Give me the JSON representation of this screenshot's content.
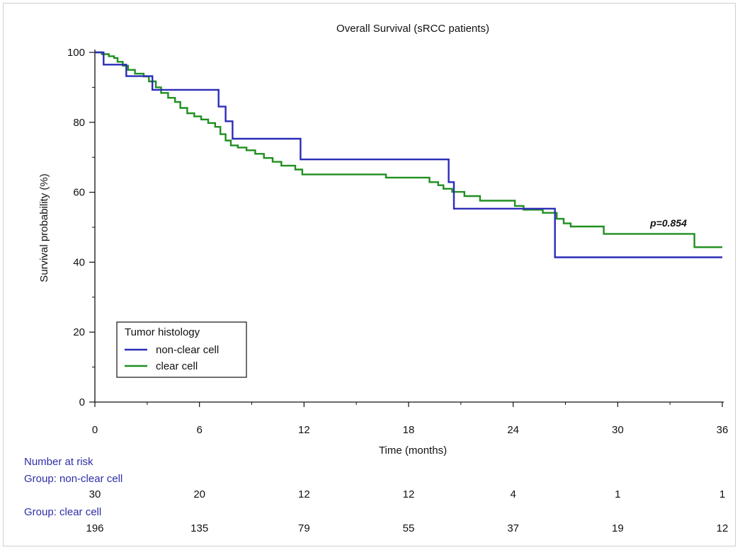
{
  "chart_data": {
    "type": "line",
    "title": "Overall Survival (sRCC patients)",
    "xlabel": "Time (months)",
    "ylabel": "Survival probability (%)",
    "xlim": [
      0,
      36
    ],
    "ylim": [
      0,
      100
    ],
    "x_ticks": [
      "0",
      "6",
      "12",
      "18",
      "24",
      "30",
      "36"
    ],
    "y_ticks": [
      "0",
      "20",
      "40",
      "60",
      "80",
      "100"
    ],
    "legend": {
      "title": "Tumor histology",
      "position": "lower-left"
    },
    "annotation": "p=0.854",
    "series": [
      {
        "name": "non-clear cell",
        "color": "#2b2bb8",
        "step_points": [
          [
            0,
            100
          ],
          [
            0.5,
            96.5
          ],
          [
            1.8,
            93.2
          ],
          [
            3.3,
            89.3
          ],
          [
            7.1,
            84.5
          ],
          [
            7.5,
            80.3
          ],
          [
            7.9,
            75.3
          ],
          [
            11.8,
            69.4
          ],
          [
            20.3,
            62.9
          ],
          [
            20.6,
            55.3
          ],
          [
            26.4,
            41.4
          ],
          [
            36,
            41.4
          ]
        ]
      },
      {
        "name": "clear cell",
        "color": "#1f8f1f",
        "step_points": [
          [
            0,
            100
          ],
          [
            0.4,
            99.5
          ],
          [
            0.8,
            98.9
          ],
          [
            1.1,
            98.4
          ],
          [
            1.3,
            97.3
          ],
          [
            1.6,
            96.2
          ],
          [
            1.9,
            95.0
          ],
          [
            2.3,
            93.9
          ],
          [
            2.8,
            93.1
          ],
          [
            3.1,
            91.7
          ],
          [
            3.5,
            90.0
          ],
          [
            3.8,
            88.4
          ],
          [
            4.2,
            87.0
          ],
          [
            4.6,
            85.8
          ],
          [
            4.9,
            84.1
          ],
          [
            5.3,
            82.6
          ],
          [
            5.7,
            81.7
          ],
          [
            6.1,
            80.8
          ],
          [
            6.5,
            79.8
          ],
          [
            6.9,
            78.7
          ],
          [
            7.2,
            76.6
          ],
          [
            7.5,
            74.8
          ],
          [
            7.8,
            73.4
          ],
          [
            8.2,
            72.8
          ],
          [
            8.7,
            72.0
          ],
          [
            9.2,
            71.0
          ],
          [
            9.7,
            69.8
          ],
          [
            10.2,
            68.7
          ],
          [
            10.7,
            67.6
          ],
          [
            11.5,
            66.5
          ],
          [
            11.9,
            65.1
          ],
          [
            14.3,
            65.1
          ],
          [
            16.7,
            64.2
          ],
          [
            19.2,
            62.9
          ],
          [
            19.7,
            62.0
          ],
          [
            20.0,
            61.0
          ],
          [
            20.5,
            60.1
          ],
          [
            21.2,
            58.9
          ],
          [
            22.1,
            57.6
          ],
          [
            24.1,
            56.1
          ],
          [
            24.6,
            55.0
          ],
          [
            25.7,
            54.1
          ],
          [
            26.5,
            52.4
          ],
          [
            26.9,
            51.1
          ],
          [
            27.3,
            50.2
          ],
          [
            29.2,
            48.1
          ],
          [
            34.4,
            44.3
          ],
          [
            36,
            44.3
          ]
        ]
      }
    ],
    "number_at_risk": {
      "heading": "Number at risk",
      "times": [
        0,
        6,
        12,
        18,
        24,
        30,
        36
      ],
      "groups": [
        {
          "label": "Group: non-clear cell",
          "values": [
            "30",
            "20",
            "12",
            "12",
            "4",
            "1",
            "1"
          ]
        },
        {
          "label": "Group: clear cell",
          "values": [
            "196",
            "135",
            "79",
            "55",
            "37",
            "19",
            "12"
          ]
        }
      ]
    }
  }
}
